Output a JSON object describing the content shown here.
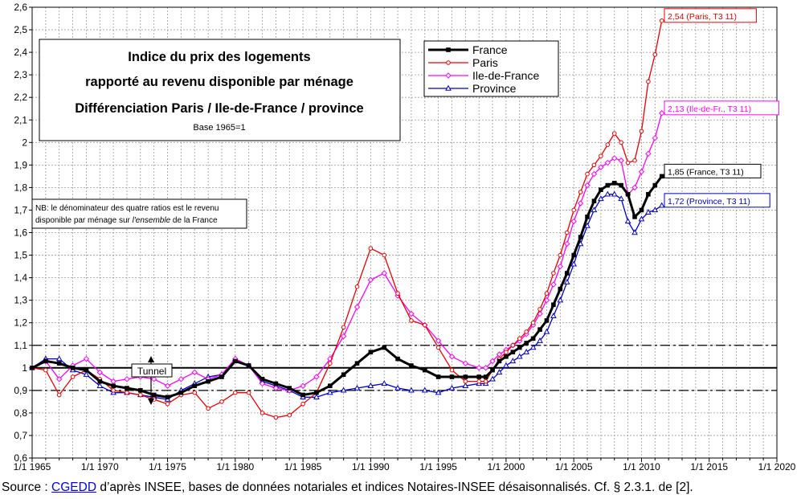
{
  "chart_data": {
    "type": "line",
    "title_lines": [
      "Indice du prix des logements",
      "rapporté au revenu disponible par ménage",
      "Différenciation Paris / Ile-de-France / province"
    ],
    "subtitle": "Base 1965=1",
    "note_lines": [
      [
        {
          "t": "NB: le dénominateur des quatre ratios est le revenu",
          "i": false
        }
      ],
      [
        {
          "t": "disponible par ménage sur ",
          "i": false
        },
        {
          "t": "l'ensemble",
          "i": true
        },
        {
          "t": " de la France",
          "i": false
        }
      ]
    ],
    "tunnel_label": "Tunnel",
    "reference_lines": {
      "solid": 1.0,
      "dashed_upper": 1.1,
      "dashed_lower": 0.9
    },
    "ylim": [
      0.6,
      2.6
    ],
    "yticks": [
      0.6,
      0.7,
      0.8,
      0.9,
      1.0,
      1.1,
      1.2,
      1.3,
      1.4,
      1.5,
      1.6,
      1.7,
      1.8,
      1.9,
      2.0,
      2.1,
      2.2,
      2.3,
      2.4,
      2.5,
      2.6
    ],
    "ytick_labels": [
      "0,6",
      "0,7",
      "0,8",
      "0,9",
      "1",
      "1,1",
      "1,2",
      "1,3",
      "1,4",
      "1,5",
      "1,6",
      "1,7",
      "1,8",
      "1,9",
      "2",
      "2,1",
      "2,2",
      "2,3",
      "2,4",
      "2,5",
      "2,6"
    ],
    "xlim": [
      1965,
      2020
    ],
    "xticks": [
      1965,
      1970,
      1975,
      1980,
      1985,
      1990,
      1995,
      2000,
      2005,
      2010,
      2015,
      2020
    ],
    "xtick_labels": [
      "1/1 1965",
      "1/1 1970",
      "1/1 1975",
      "1/1 1980",
      "1/1 1985",
      "1/1 1990",
      "1/1 1995",
      "1/1 2000",
      "1/1 2005",
      "1/1 2010",
      "1/1 2015",
      "1/1 2020"
    ],
    "grid": true,
    "legend_position": "top-center",
    "series": [
      {
        "name": "France",
        "color": "#000000",
        "marker": "square",
        "width": 3,
        "end_label": "1,85 (France, T3 11)",
        "x": [
          1965,
          1966,
          1967,
          1968,
          1969,
          1970,
          1971,
          1972,
          1973,
          1974,
          1975,
          1976,
          1977,
          1978,
          1979,
          1980,
          1981,
          1982,
          1983,
          1984,
          1985,
          1986,
          1987,
          1988,
          1989,
          1990,
          1991,
          1992,
          1993,
          1994,
          1995,
          1996,
          1997,
          1998,
          1998.5,
          1999,
          1999.5,
          2000,
          2000.5,
          2001,
          2001.5,
          2002,
          2002.5,
          2003,
          2003.5,
          2004,
          2004.5,
          2005,
          2005.5,
          2006,
          2006.5,
          2007,
          2007.5,
          2008,
          2008.5,
          2009,
          2009.5,
          2010,
          2010.5,
          2011,
          2011.5
        ],
        "y": [
          1.0,
          1.03,
          1.02,
          1.0,
          0.99,
          0.94,
          0.92,
          0.91,
          0.9,
          0.88,
          0.87,
          0.89,
          0.92,
          0.94,
          0.96,
          1.03,
          1.01,
          0.95,
          0.93,
          0.91,
          0.88,
          0.89,
          0.92,
          0.97,
          1.02,
          1.07,
          1.09,
          1.04,
          1.01,
          0.99,
          0.96,
          0.96,
          0.96,
          0.96,
          0.96,
          0.99,
          1.03,
          1.05,
          1.07,
          1.09,
          1.11,
          1.13,
          1.17,
          1.21,
          1.28,
          1.35,
          1.42,
          1.5,
          1.58,
          1.67,
          1.74,
          1.79,
          1.81,
          1.82,
          1.81,
          1.77,
          1.67,
          1.7,
          1.77,
          1.81,
          1.85
        ]
      },
      {
        "name": "Paris",
        "color": "#ee0000",
        "marker": "circle",
        "width": 1.3,
        "end_label": "2,54 (Paris, T3 11)",
        "x": [
          1965,
          1966,
          1967,
          1968,
          1969,
          1970,
          1971,
          1972,
          1973,
          1974,
          1975,
          1976,
          1977,
          1978,
          1979,
          1980,
          1981,
          1982,
          1983,
          1984,
          1985,
          1986,
          1987,
          1988,
          1989,
          1990,
          1991,
          1992,
          1993,
          1994,
          1995,
          1996,
          1997,
          1998,
          1998.5,
          1999,
          1999.5,
          2000,
          2000.5,
          2001,
          2001.5,
          2002,
          2002.5,
          2003,
          2003.5,
          2004,
          2004.5,
          2005,
          2005.5,
          2006,
          2006.5,
          2007,
          2007.5,
          2008,
          2008.5,
          2009,
          2009.5,
          2010,
          2010.5,
          2011,
          2011.5
        ],
        "y": [
          1.0,
          0.99,
          0.88,
          0.96,
          0.99,
          0.95,
          0.9,
          0.89,
          0.88,
          0.86,
          0.84,
          0.88,
          0.89,
          0.82,
          0.85,
          0.89,
          0.89,
          0.8,
          0.78,
          0.79,
          0.84,
          0.89,
          1.02,
          1.18,
          1.36,
          1.53,
          1.5,
          1.33,
          1.21,
          1.19,
          1.09,
          0.99,
          0.94,
          0.94,
          0.94,
          0.99,
          1.04,
          1.07,
          1.1,
          1.13,
          1.16,
          1.2,
          1.26,
          1.33,
          1.42,
          1.5,
          1.6,
          1.7,
          1.78,
          1.86,
          1.9,
          1.94,
          1.99,
          2.04,
          2.0,
          1.91,
          1.92,
          2.05,
          2.27,
          2.39,
          2.54
        ]
      },
      {
        "name": "Ile-de-France",
        "color": "#ff00ff",
        "marker": "diamond",
        "width": 1.3,
        "end_label": "2,13 (Ile-de-Fr., T3 11)",
        "x": [
          1965,
          1966,
          1967,
          1968,
          1969,
          1970,
          1971,
          1972,
          1973,
          1974,
          1975,
          1976,
          1977,
          1978,
          1979,
          1980,
          1981,
          1982,
          1983,
          1984,
          1985,
          1986,
          1987,
          1988,
          1989,
          1990,
          1991,
          1992,
          1993,
          1994,
          1995,
          1996,
          1997,
          1998,
          1998.5,
          1999,
          1999.5,
          2000,
          2000.5,
          2001,
          2001.5,
          2002,
          2002.5,
          2003,
          2003.5,
          2004,
          2004.5,
          2005,
          2005.5,
          2006,
          2006.5,
          2007,
          2007.5,
          2008,
          2008.5,
          2009,
          2009.5,
          2010,
          2010.5,
          2011,
          2011.5
        ],
        "y": [
          1.0,
          1.03,
          0.95,
          1.01,
          1.04,
          0.98,
          0.94,
          0.95,
          0.96,
          0.95,
          0.92,
          0.95,
          0.98,
          0.95,
          0.97,
          1.04,
          1.01,
          0.93,
          0.91,
          0.9,
          0.92,
          0.96,
          1.04,
          1.14,
          1.27,
          1.39,
          1.42,
          1.32,
          1.24,
          1.19,
          1.12,
          1.05,
          1.02,
          1.0,
          1.0,
          1.03,
          1.06,
          1.08,
          1.1,
          1.12,
          1.15,
          1.19,
          1.24,
          1.3,
          1.37,
          1.45,
          1.55,
          1.65,
          1.73,
          1.81,
          1.86,
          1.89,
          1.91,
          1.93,
          1.92,
          1.77,
          1.8,
          1.87,
          1.95,
          2.02,
          2.13
        ]
      },
      {
        "name": "Province",
        "color": "#0000cc",
        "marker": "triangle",
        "width": 1.3,
        "end_label": "1,72 (Province, T3 11)",
        "x": [
          1965,
          1966,
          1967,
          1968,
          1969,
          1970,
          1971,
          1972,
          1973,
          1974,
          1975,
          1976,
          1977,
          1978,
          1979,
          1980,
          1981,
          1982,
          1983,
          1984,
          1985,
          1986,
          1987,
          1988,
          1989,
          1990,
          1991,
          1992,
          1993,
          1994,
          1995,
          1996,
          1997,
          1998,
          1998.5,
          1999,
          1999.5,
          2000,
          2000.5,
          2001,
          2001.5,
          2002,
          2002.5,
          2003,
          2003.5,
          2004,
          2004.5,
          2005,
          2005.5,
          2006,
          2006.5,
          2007,
          2007.5,
          2008,
          2008.5,
          2009,
          2009.5,
          2010,
          2010.5,
          2011,
          2011.5
        ],
        "y": [
          1.0,
          1.04,
          1.04,
          0.99,
          0.97,
          0.92,
          0.89,
          0.89,
          0.88,
          0.87,
          0.86,
          0.9,
          0.93,
          0.96,
          0.97,
          1.04,
          1.01,
          0.94,
          0.92,
          0.9,
          0.87,
          0.87,
          0.89,
          0.9,
          0.91,
          0.92,
          0.93,
          0.91,
          0.9,
          0.9,
          0.89,
          0.91,
          0.92,
          0.93,
          0.93,
          0.95,
          0.98,
          1.01,
          1.03,
          1.05,
          1.07,
          1.09,
          1.12,
          1.16,
          1.23,
          1.3,
          1.38,
          1.46,
          1.55,
          1.63,
          1.7,
          1.75,
          1.77,
          1.77,
          1.75,
          1.65,
          1.6,
          1.66,
          1.69,
          1.7,
          1.72
        ]
      }
    ]
  },
  "source": {
    "prefix": "Source : ",
    "link_text": "CGEDD",
    "suffix": " d’après INSEE, bases de données notariales et indices Notaires-INSEE désaisonnalisés.  Cf. § 2.3.1. de [2]."
  }
}
